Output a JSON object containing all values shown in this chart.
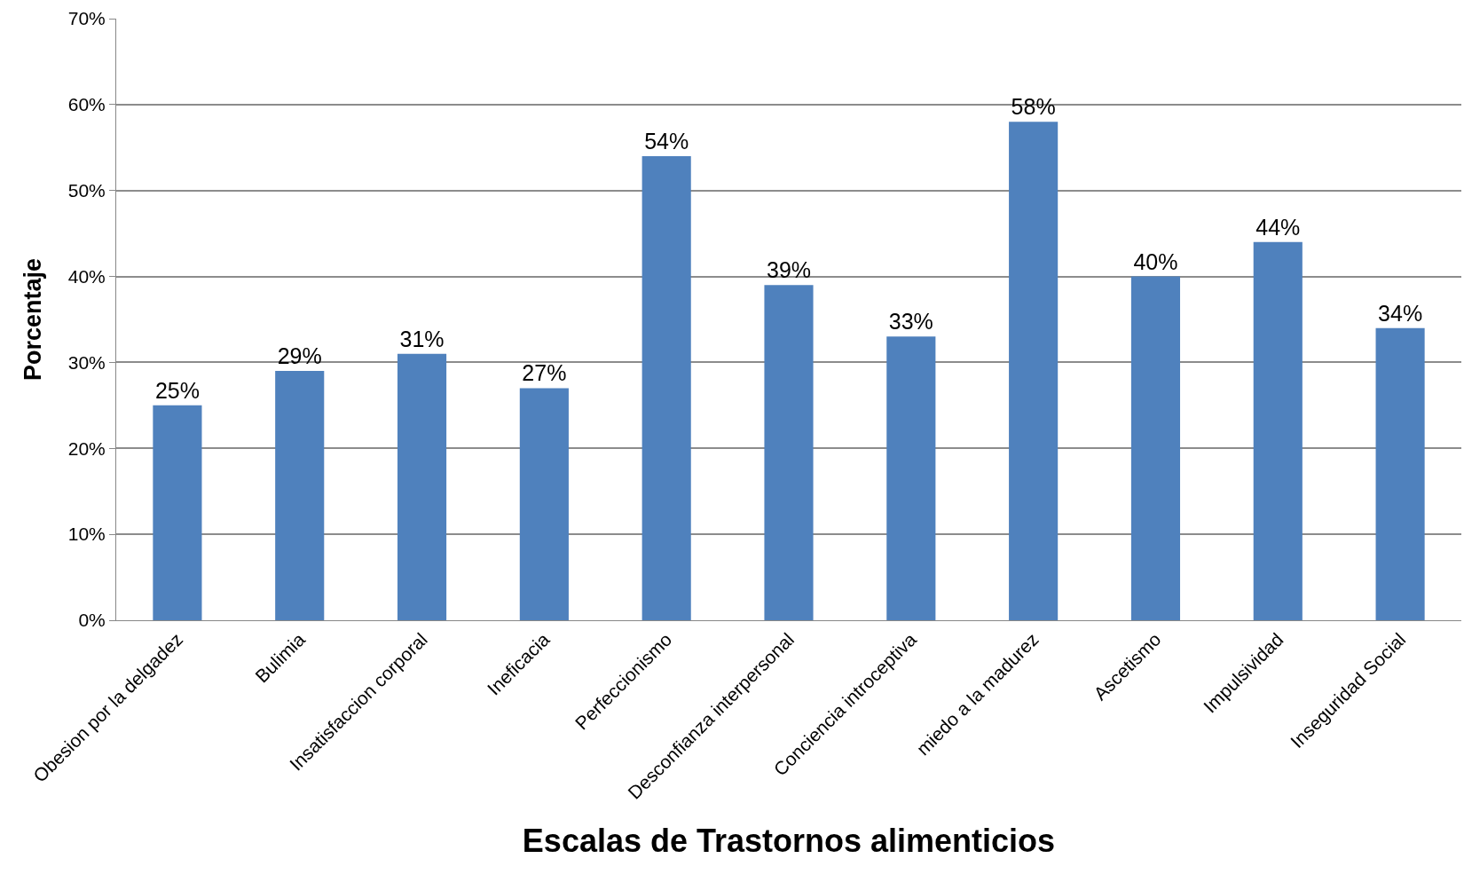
{
  "chart_data": {
    "type": "bar",
    "categories": [
      "Obesion por la delgadez",
      "Bulimia",
      "Insatisfaccion corporal",
      "Ineficacia",
      "Perfeccionismo",
      "Desconfianza interpersonal",
      "Conciencia introceptiva",
      "miedo a la madurez",
      "Ascetismo",
      "Impulsividad",
      "Inseguridad Social"
    ],
    "values": [
      25,
      29,
      31,
      27,
      54,
      39,
      33,
      58,
      40,
      44,
      34
    ],
    "value_labels": [
      "25%",
      "29%",
      "31%",
      "27%",
      "54%",
      "39%",
      "33%",
      "58%",
      "40%",
      "44%",
      "34%"
    ],
    "color": "#4f81bd",
    "xlabel": "Escalas de Trastornos alimenticios",
    "ylabel": "Porcentaje",
    "ylim": [
      0,
      70
    ],
    "yticks": [
      {
        "value": 0,
        "label": "0%"
      },
      {
        "value": 10,
        "label": "10%"
      },
      {
        "value": 20,
        "label": "20%"
      },
      {
        "value": 30,
        "label": "30%"
      },
      {
        "value": 40,
        "label": "40%"
      },
      {
        "value": 50,
        "label": "50%"
      },
      {
        "value": 60,
        "label": "60%"
      },
      {
        "value": 70,
        "label": "70%"
      }
    ],
    "grid": "y"
  }
}
